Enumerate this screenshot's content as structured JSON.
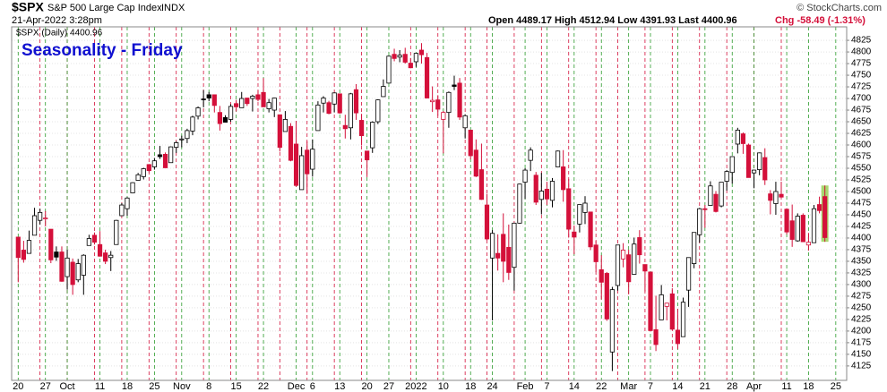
{
  "header": {
    "symbol": "$SPX",
    "name": "S&P 500 Large Cap Index",
    "exchange": "INDX",
    "timestamp": "21-Apr-2022 3:28pm",
    "quote": "Open 4489.17  High 4512.94  Low 4391.93  Last 4400.96",
    "change": "Chg -58.49 (-1.31%)",
    "copyright": "© StockCharts.com"
  },
  "chart_data": {
    "type": "candlestick",
    "title": "Seasonality - Friday",
    "legend": "$SPX (Daily) 4400.96",
    "up_color": "#000000",
    "down_color": "#d4103a",
    "highlight_color": "#a8d870",
    "grid": true,
    "ylim": [
      4094,
      4854
    ],
    "yticks": [
      4125,
      4150,
      4175,
      4200,
      4225,
      4250,
      4275,
      4300,
      4325,
      4350,
      4375,
      4400,
      4425,
      4450,
      4475,
      4500,
      4525,
      4550,
      4575,
      4600,
      4625,
      4650,
      4675,
      4700,
      4725,
      4750,
      4775,
      4800,
      4825
    ],
    "xlim": [
      -1.2,
      152
    ],
    "xticks": [
      {
        "value": 0,
        "label": "20"
      },
      {
        "value": 5,
        "label": "27"
      },
      {
        "value": 9,
        "label": "Oct"
      },
      {
        "value": 15,
        "label": "11"
      },
      {
        "value": 20,
        "label": "18"
      },
      {
        "value": 25,
        "label": "25"
      },
      {
        "value": 30,
        "label": "Nov"
      },
      {
        "value": 35,
        "label": "8"
      },
      {
        "value": 40,
        "label": "15"
      },
      {
        "value": 45,
        "label": "22"
      },
      {
        "value": 51,
        "label": "Dec"
      },
      {
        "value": 54,
        "label": "6"
      },
      {
        "value": 59,
        "label": "13"
      },
      {
        "value": 64,
        "label": "20"
      },
      {
        "value": 68,
        "label": "27"
      },
      {
        "value": 73,
        "label": "2022"
      },
      {
        "value": 78,
        "label": "10"
      },
      {
        "value": 83,
        "label": "18"
      },
      {
        "value": 87,
        "label": "24"
      },
      {
        "value": 93,
        "label": "Feb"
      },
      {
        "value": 97,
        "label": "7"
      },
      {
        "value": 102,
        "label": "14"
      },
      {
        "value": 107,
        "label": "22"
      },
      {
        "value": 112,
        "label": "Mar"
      },
      {
        "value": 116,
        "label": "7"
      },
      {
        "value": 121,
        "label": "14"
      },
      {
        "value": 126,
        "label": "21"
      },
      {
        "value": 131,
        "label": "28"
      },
      {
        "value": 135,
        "label": "Apr"
      },
      {
        "value": 141,
        "label": "11"
      },
      {
        "value": 145,
        "label": "18"
      },
      {
        "value": 150,
        "label": "25"
      }
    ],
    "fridays": [
      4,
      9,
      14,
      19,
      24,
      29,
      34,
      39,
      44,
      48,
      53,
      58,
      63,
      72,
      77,
      82,
      86,
      91,
      96,
      101,
      106,
      110,
      115,
      120,
      125,
      130,
      135,
      140
    ],
    "ohlc": [
      [
        4402,
        4402,
        4305,
        4358
      ],
      [
        4374,
        4394,
        4347,
        4354
      ],
      [
        4367,
        4416,
        4367,
        4395
      ],
      [
        4406,
        4465,
        4406,
        4448
      ],
      [
        4438,
        4463,
        4429,
        4455
      ],
      [
        4443,
        4458,
        4425,
        4443
      ],
      [
        4419,
        4419,
        4346,
        4353
      ],
      [
        4370,
        4382,
        4351,
        4359
      ],
      [
        4370,
        4382,
        4306,
        4307
      ],
      [
        4317,
        4375,
        4289,
        4357
      ],
      [
        4348,
        4356,
        4278,
        4300
      ],
      [
        4310,
        4355,
        4305,
        4345
      ],
      [
        4320,
        4365,
        4278,
        4363
      ],
      [
        4384,
        4407,
        4384,
        4399
      ],
      [
        4406,
        4412,
        4386,
        4391
      ],
      [
        4386,
        4415,
        4360,
        4361
      ],
      [
        4368,
        4375,
        4344,
        4350
      ],
      [
        4358,
        4372,
        4329,
        4363
      ],
      [
        4386,
        4439,
        4386,
        4438
      ],
      [
        4448,
        4475,
        4448,
        4471
      ],
      [
        4463,
        4488,
        4448,
        4486
      ],
      [
        4497,
        4520,
        4496,
        4519
      ],
      [
        4524,
        4540,
        4524,
        4536
      ],
      [
        4532,
        4551,
        4526,
        4549
      ],
      [
        4558,
        4559,
        4541,
        4545
      ],
      [
        4553,
        4572,
        4547,
        4566
      ],
      [
        4579,
        4598,
        4570,
        4575
      ],
      [
        4580,
        4584,
        4551,
        4551
      ],
      [
        4562,
        4597,
        4562,
        4596
      ],
      [
        4595,
        4608,
        4583,
        4605
      ],
      [
        4611,
        4620,
        4595,
        4613
      ],
      [
        4614,
        4635,
        4604,
        4631
      ],
      [
        4630,
        4663,
        4621,
        4660
      ],
      [
        4662,
        4683,
        4655,
        4680
      ],
      [
        4699,
        4718,
        4681,
        4697
      ],
      [
        4708,
        4714,
        4694,
        4701
      ],
      [
        4708,
        4708,
        4670,
        4685
      ],
      [
        4670,
        4684,
        4631,
        4646
      ],
      [
        4659,
        4664,
        4649,
        4649
      ],
      [
        4655,
        4688,
        4650,
        4683
      ],
      [
        4689,
        4697,
        4672,
        4682
      ],
      [
        4680,
        4714,
        4680,
        4700
      ],
      [
        4701,
        4701,
        4684,
        4689
      ],
      [
        4700,
        4708,
        4672,
        4705
      ],
      [
        4708,
        4717,
        4694,
        4698
      ],
      [
        4713,
        4744,
        4682,
        4682
      ],
      [
        4678,
        4699,
        4670,
        4691
      ],
      [
        4675,
        4702,
        4660,
        4701
      ],
      [
        4665,
        4665,
        4586,
        4595
      ],
      [
        4629,
        4673,
        4629,
        4655
      ],
      [
        4640,
        4647,
        4565,
        4567
      ],
      [
        4602,
        4652,
        4510,
        4513
      ],
      [
        4504,
        4596,
        4504,
        4577
      ],
      [
        4589,
        4608,
        4495,
        4538
      ],
      [
        4548,
        4612,
        4532,
        4591
      ],
      [
        4631,
        4694,
        4631,
        4686
      ],
      [
        4690,
        4705,
        4670,
        4701
      ],
      [
        4691,
        4695,
        4666,
        4668
      ],
      [
        4688,
        4713,
        4670,
        4712
      ],
      [
        4710,
        4710,
        4667,
        4669
      ],
      [
        4642,
        4665,
        4614,
        4635
      ],
      [
        4637,
        4712,
        4612,
        4710
      ],
      [
        4719,
        4731,
        4654,
        4669
      ],
      [
        4653,
        4667,
        4599,
        4620
      ],
      [
        4587,
        4587,
        4531,
        4568
      ],
      [
        4594,
        4651,
        4583,
        4649
      ],
      [
        4650,
        4698,
        4645,
        4697
      ],
      [
        4704,
        4741,
        4704,
        4726
      ],
      [
        4733,
        4792,
        4733,
        4791
      ],
      [
        4795,
        4807,
        4780,
        4786
      ],
      [
        4789,
        4804,
        4778,
        4793
      ],
      [
        4795,
        4809,
        4775,
        4778
      ],
      [
        4776,
        4787,
        4765,
        4766
      ],
      [
        4779,
        4797,
        4768,
        4797
      ],
      [
        4804,
        4819,
        4775,
        4794
      ],
      [
        4788,
        4798,
        4700,
        4701
      ],
      [
        4693,
        4726,
        4671,
        4696
      ],
      [
        4697,
        4707,
        4663,
        4677
      ],
      [
        4655,
        4673,
        4582,
        4670
      ],
      [
        4670,
        4715,
        4637,
        4713
      ],
      [
        4729,
        4749,
        4718,
        4726
      ],
      [
        4733,
        4744,
        4654,
        4660
      ],
      [
        4637,
        4666,
        4614,
        4663
      ],
      [
        4632,
        4632,
        4569,
        4577
      ],
      [
        4589,
        4612,
        4531,
        4533
      ],
      [
        4547,
        4603,
        4482,
        4483
      ],
      [
        4471,
        4495,
        4395,
        4398
      ],
      [
        4357,
        4417,
        4223,
        4410
      ],
      [
        4367,
        4408,
        4330,
        4357
      ],
      [
        4408,
        4453,
        4305,
        4350
      ],
      [
        4380,
        4429,
        4310,
        4326
      ],
      [
        4337,
        4433,
        4287,
        4432
      ],
      [
        4432,
        4517,
        4431,
        4516
      ],
      [
        4520,
        4550,
        4484,
        4546
      ],
      [
        4567,
        4595,
        4544,
        4589
      ],
      [
        4535,
        4542,
        4471,
        4477
      ],
      [
        4483,
        4540,
        4451,
        4501
      ],
      [
        4505,
        4521,
        4471,
        4484
      ],
      [
        4481,
        4529,
        4466,
        4522
      ],
      [
        4553,
        4588,
        4553,
        4587
      ],
      [
        4553,
        4589,
        4478,
        4504
      ],
      [
        4506,
        4527,
        4401,
        4419
      ],
      [
        4413,
        4427,
        4365,
        4402
      ],
      [
        4430,
        4472,
        4412,
        4472
      ],
      [
        4455,
        4490,
        4430,
        4475
      ],
      [
        4456,
        4456,
        4374,
        4381
      ],
      [
        4385,
        4394,
        4327,
        4349
      ],
      [
        4332,
        4363,
        4268,
        4305
      ],
      [
        4324,
        4327,
        4222,
        4226
      ],
      [
        4155,
        4295,
        4114,
        4289
      ],
      [
        4298,
        4385,
        4287,
        4385
      ],
      [
        4355,
        4389,
        4337,
        4374
      ],
      [
        4364,
        4375,
        4279,
        4306
      ],
      [
        4322,
        4401,
        4322,
        4387
      ],
      [
        4401,
        4417,
        4345,
        4364
      ],
      [
        4343,
        4343,
        4285,
        4329
      ],
      [
        4327,
        4327,
        4199,
        4201
      ],
      [
        4203,
        4276,
        4157,
        4171
      ],
      [
        4224,
        4299,
        4224,
        4278
      ],
      [
        4253,
        4261,
        4223,
        4260
      ],
      [
        4280,
        4292,
        4202,
        4204
      ],
      [
        4202,
        4248,
        4161,
        4173
      ],
      [
        4188,
        4272,
        4188,
        4262
      ],
      [
        4288,
        4358,
        4252,
        4358
      ],
      [
        4345,
        4412,
        4335,
        4412
      ],
      [
        4407,
        4465,
        4390,
        4463
      ],
      [
        4463,
        4471,
        4422,
        4461
      ],
      [
        4470,
        4522,
        4469,
        4512
      ],
      [
        4494,
        4501,
        4455,
        4457
      ],
      [
        4469,
        4520,
        4466,
        4520
      ],
      [
        4522,
        4546,
        4502,
        4543
      ],
      [
        4541,
        4576,
        4517,
        4575
      ],
      [
        4602,
        4637,
        4582,
        4632
      ],
      [
        4624,
        4627,
        4581,
        4603
      ],
      [
        4600,
        4603,
        4530,
        4530
      ],
      [
        4540,
        4547,
        4507,
        4546
      ],
      [
        4547,
        4584,
        4535,
        4583
      ],
      [
        4573,
        4593,
        4514,
        4525
      ],
      [
        4495,
        4503,
        4451,
        4481
      ],
      [
        4474,
        4521,
        4450,
        4500
      ],
      [
        4494,
        4521,
        4487,
        4488
      ],
      [
        4462,
        4464,
        4408,
        4413
      ],
      [
        4437,
        4472,
        4381,
        4397
      ],
      [
        4394,
        4453,
        4392,
        4447
      ],
      [
        4449,
        4453,
        4392,
        4392
      ],
      [
        4385,
        4411,
        4373,
        4391
      ],
      [
        4390,
        4471,
        4390,
        4463
      ],
      [
        4472,
        4489,
        4453,
        4459
      ],
      [
        4489.17,
        4512.94,
        4391.93,
        4400.96
      ]
    ]
  }
}
